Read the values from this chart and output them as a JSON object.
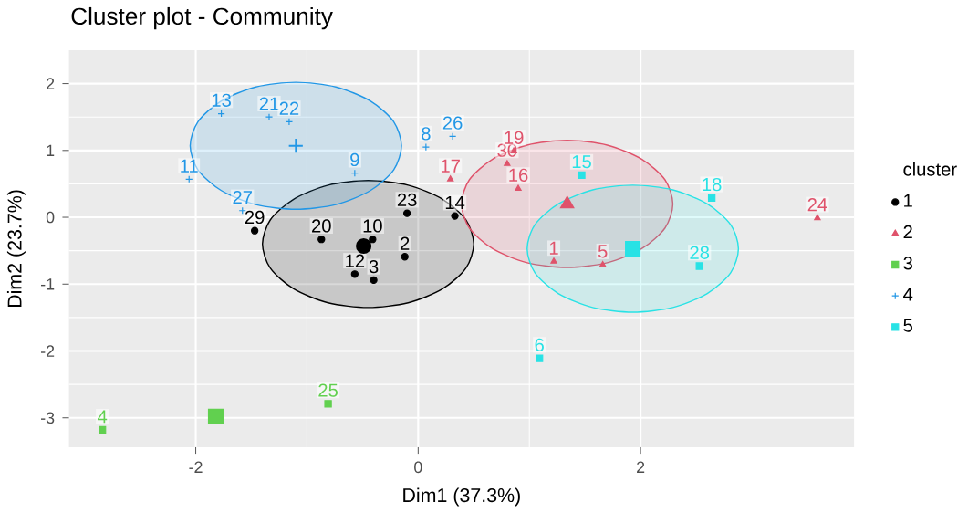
{
  "chart_data": {
    "type": "scatter",
    "title": "Cluster plot - Community",
    "xlabel": "Dim1 (37.3%)",
    "ylabel": "Dim2 (23.7%)",
    "legend_title": "cluster",
    "xlim": [
      -3.14,
      3.92
    ],
    "ylim": [
      -3.44,
      2.5
    ],
    "xticks": [
      -2,
      0,
      2
    ],
    "yticks": [
      -3,
      -2,
      -1,
      0,
      1,
      2
    ],
    "grid": true,
    "legend": "right",
    "series": [
      {
        "type": "area",
        "color": "#000000",
        "x": [
          0.5,
          0.43,
          0.22,
          -0.09,
          -0.45,
          -0.81,
          -1.12,
          -1.33,
          -1.4,
          -1.33,
          -1.12,
          -0.81,
          -0.45,
          -0.09,
          0.22,
          0.43
        ],
        "values": [
          -0.4,
          -0.04,
          0.27,
          0.48,
          0.55,
          0.48,
          0.27,
          -0.04,
          -0.4,
          -0.76,
          -1.07,
          -1.28,
          -1.35,
          -1.28,
          -1.07,
          -0.76
        ]
      },
      {
        "type": "area",
        "color": "#DF536B",
        "x": [
          2.29,
          2.22,
          2.01,
          1.7,
          1.34,
          0.98,
          0.67,
          0.46,
          0.39,
          0.46,
          0.67,
          0.98,
          1.34,
          1.7,
          2.01,
          2.22
        ],
        "values": [
          0.2,
          0.56,
          0.87,
          1.08,
          1.15,
          1.08,
          0.87,
          0.56,
          0.2,
          -0.16,
          -0.47,
          -0.68,
          -0.75,
          -0.68,
          -0.47,
          -0.16
        ]
      },
      {
        "type": "area",
        "color": "#2297E6",
        "x": [
          -0.15,
          -0.22,
          -0.43,
          -0.74,
          -1.1,
          -1.46,
          -1.77,
          -1.98,
          -2.05,
          -1.98,
          -1.77,
          -1.46,
          -1.1,
          -0.74,
          -0.43,
          -0.22
        ],
        "values": [
          1.07,
          1.43,
          1.74,
          1.95,
          2.02,
          1.95,
          1.74,
          1.43,
          1.07,
          0.71,
          0.4,
          0.19,
          0.12,
          0.19,
          0.4,
          0.71
        ]
      },
      {
        "type": "area",
        "color": "#28E2E5",
        "x": [
          2.88,
          2.81,
          2.6,
          2.29,
          1.93,
          1.57,
          1.26,
          1.05,
          0.98,
          1.05,
          1.26,
          1.57,
          1.93,
          2.29,
          2.6,
          2.81
        ],
        "values": [
          -0.47,
          -0.11,
          0.2,
          0.41,
          0.48,
          0.41,
          0.2,
          -0.11,
          -0.47,
          -0.83,
          -1.14,
          -1.35,
          -1.42,
          -1.35,
          -1.14,
          -0.83
        ]
      },
      {
        "color": "#000000",
        "marker": "circle",
        "x": [
          -0.49
        ],
        "values": [
          -0.43
        ]
      },
      {
        "color": "#DF536B",
        "marker": "triangle",
        "x": [
          1.34
        ],
        "values": [
          0.2
        ]
      },
      {
        "color": "#61D04F",
        "marker": "square",
        "x": [
          -1.82
        ],
        "values": [
          -2.98
        ]
      },
      {
        "color": "#2297E6",
        "marker": "cross",
        "x": [
          -1.1
        ],
        "values": [
          1.07
        ]
      },
      {
        "color": "#28E2E5",
        "marker": "square",
        "x": [
          1.93
        ],
        "values": [
          -0.47
        ]
      },
      {
        "name": "1",
        "color": "#000000",
        "marker": "circle",
        "x": [
          -1.47,
          -0.87,
          -0.41,
          -0.12,
          -0.57,
          -0.4,
          -0.1,
          0.33
        ],
        "values": [
          -0.2,
          -0.33,
          -0.33,
          -0.59,
          -0.85,
          -0.94,
          0.06,
          0.02
        ]
      },
      {
        "name": "2",
        "color": "#DF536B",
        "marker": "triangle",
        "x": [
          0.29,
          0.8,
          0.86,
          0.9,
          1.22,
          1.66,
          3.59
        ],
        "values": [
          0.57,
          0.8,
          0.99,
          0.43,
          -0.66,
          -0.71,
          -0.01
        ]
      },
      {
        "name": "3",
        "color": "#61D04F",
        "marker": "square",
        "x": [
          -2.84,
          -0.81
        ],
        "values": [
          -3.18,
          -2.79
        ]
      },
      {
        "name": "4",
        "color": "#2297E6",
        "marker": "cross",
        "x": [
          -1.77,
          -1.34,
          -1.16,
          -2.06,
          -0.57,
          -1.58,
          0.07,
          0.31
        ],
        "values": [
          1.55,
          1.5,
          1.43,
          0.57,
          0.66,
          0.1,
          1.05,
          1.21
        ]
      },
      {
        "name": "5",
        "color": "#28E2E5",
        "marker": "square",
        "x": [
          1.47,
          2.64,
          2.53,
          1.09
        ],
        "values": [
          0.63,
          0.29,
          -0.73,
          -2.11
        ]
      }
    ],
    "annotations": [
      {
        "text": "29",
        "x": -1.47,
        "y": -0.2
      },
      {
        "text": "20",
        "x": -0.87,
        "y": -0.33
      },
      {
        "text": "10",
        "x": -0.41,
        "y": -0.33
      },
      {
        "text": "2",
        "x": -0.12,
        "y": -0.59
      },
      {
        "text": "12",
        "x": -0.57,
        "y": -0.85
      },
      {
        "text": "3",
        "x": -0.4,
        "y": -0.94
      },
      {
        "text": "23",
        "x": -0.1,
        "y": 0.06
      },
      {
        "text": "14",
        "x": 0.33,
        "y": 0.02
      },
      {
        "text": "17",
        "x": 0.29,
        "y": 0.57
      },
      {
        "text": "30",
        "x": 0.8,
        "y": 0.8
      },
      {
        "text": "19",
        "x": 0.86,
        "y": 0.99
      },
      {
        "text": "16",
        "x": 0.9,
        "y": 0.43
      },
      {
        "text": "1",
        "x": 1.22,
        "y": -0.66
      },
      {
        "text": "5",
        "x": 1.66,
        "y": -0.71
      },
      {
        "text": "24",
        "x": 3.59,
        "y": -0.01
      },
      {
        "text": "4",
        "x": -2.84,
        "y": -3.18
      },
      {
        "text": "25",
        "x": -0.81,
        "y": -2.79
      },
      {
        "text": "13",
        "x": -1.77,
        "y": 1.55
      },
      {
        "text": "21",
        "x": -1.34,
        "y": 1.5
      },
      {
        "text": "22",
        "x": -1.16,
        "y": 1.43
      },
      {
        "text": "11",
        "x": -2.06,
        "y": 0.57
      },
      {
        "text": "9",
        "x": -0.57,
        "y": 0.66
      },
      {
        "text": "27",
        "x": -1.58,
        "y": 0.1
      },
      {
        "text": "8",
        "x": 0.07,
        "y": 1.05
      },
      {
        "text": "26",
        "x": 0.31,
        "y": 1.21
      },
      {
        "text": "15",
        "x": 1.47,
        "y": 0.63
      },
      {
        "text": "18",
        "x": 2.64,
        "y": 0.29
      },
      {
        "text": "28",
        "x": 2.53,
        "y": -0.73
      },
      {
        "text": "6",
        "x": 1.09,
        "y": -2.11
      }
    ]
  }
}
